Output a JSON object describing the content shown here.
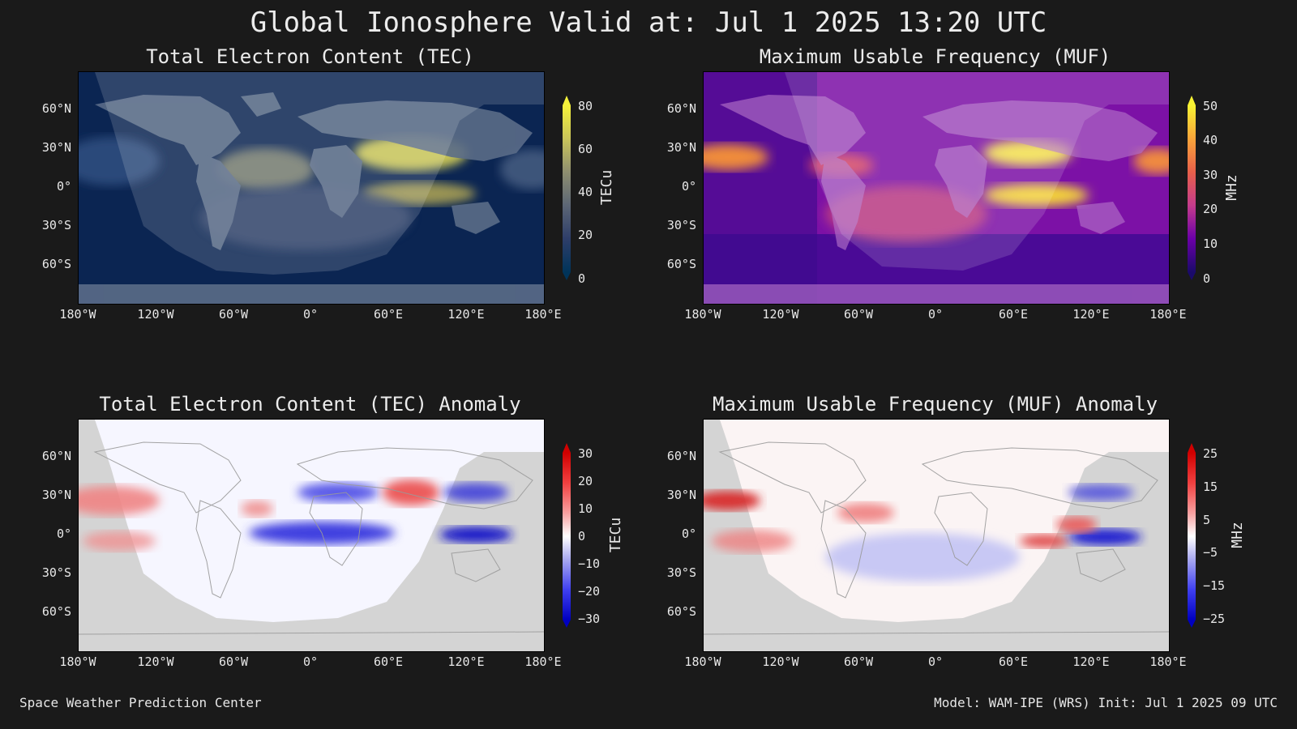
{
  "title": "Global Ionosphere Valid at: Jul 1 2025 13:20 UTC",
  "panels": {
    "tec": {
      "title": "Total Electron Content (TEC)",
      "colorbar_label": "TECu",
      "colorbar_ticks": [
        "80",
        "60",
        "40",
        "20",
        "0"
      ],
      "colormap": [
        "#f5f23a",
        "#c9c45a",
        "#8e8e70",
        "#5c6675",
        "#2e3e6a",
        "#0d2452",
        "#00345a"
      ]
    },
    "muf": {
      "title": "Maximum Usable Frequency (MUF)",
      "colorbar_label": "MHz",
      "colorbar_ticks": [
        "50",
        "40",
        "30",
        "20",
        "10",
        "0"
      ],
      "colormap": [
        "#f8f333",
        "#f9a53a",
        "#e8604a",
        "#c53c8c",
        "#9f14b0",
        "#6b00a8",
        "#1a0a6a"
      ]
    },
    "tec_anomaly": {
      "title": "Total Electron Content (TEC) Anomaly",
      "colorbar_label": "TECu",
      "colorbar_ticks": [
        "30",
        "20",
        "10",
        "0",
        "−10",
        "−20",
        "−30"
      ],
      "colormap": [
        "#d00000",
        "#f04040",
        "#f8a0a0",
        "#ffffff",
        "#a8a8f0",
        "#4040f0",
        "#0000c0"
      ]
    },
    "muf_anomaly": {
      "title": "Maximum Usable Frequency (MUF) Anomaly",
      "colorbar_label": "MHz",
      "colorbar_ticks": [
        "25",
        "15",
        "5",
        "−5",
        "−15",
        "−25"
      ],
      "colormap": [
        "#d00000",
        "#f04040",
        "#f8a0a0",
        "#ffffff",
        "#a8a8f0",
        "#4040f0",
        "#0000c0"
      ]
    }
  },
  "lat_ticks": [
    "60°N",
    "30°N",
    "0°",
    "30°S",
    "60°S"
  ],
  "lon_ticks": [
    "180°W",
    "120°W",
    "60°W",
    "0°",
    "60°E",
    "120°E",
    "180°E"
  ],
  "footer": {
    "left": "Space Weather Prediction Center",
    "right": "Model: WAM-IPE (WRS) Init: Jul 1 2025 09 UTC"
  }
}
